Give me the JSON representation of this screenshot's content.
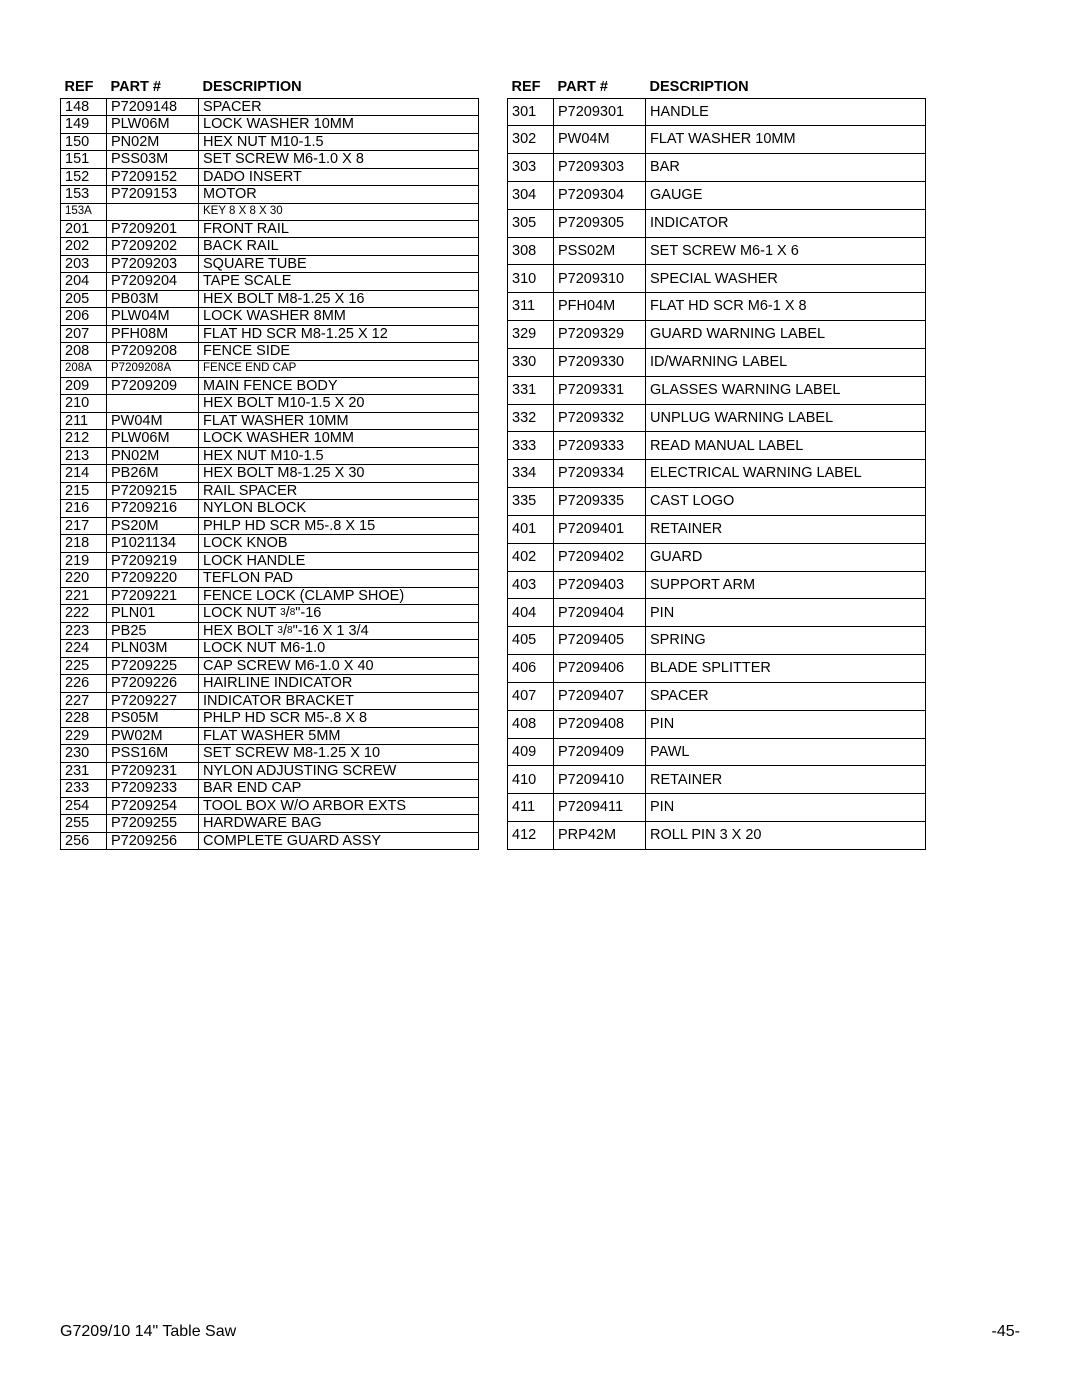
{
  "headers": {
    "ref": "REF",
    "part": "PART #",
    "desc": "DESCRIPTION"
  },
  "footer": {
    "left": "G7209/10 14\" Table Saw",
    "right": "-45-"
  },
  "col_widths": {
    "ref": 46,
    "part": 92,
    "desc": 280
  },
  "left_rows": [
    {
      "ref": "148",
      "part": "P7209148",
      "desc": "SPACER"
    },
    {
      "ref": "149",
      "part": "PLW06M",
      "desc": "LOCK WASHER 10MM"
    },
    {
      "ref": "150",
      "part": "PN02M",
      "desc": "HEX NUT M10-1.5"
    },
    {
      "ref": "151",
      "part": "PSS03M",
      "desc": "SET SCREW M6-1.0 X 8"
    },
    {
      "ref": "152",
      "part": "P7209152",
      "desc": "DADO INSERT"
    },
    {
      "ref": "153",
      "part": "P7209153",
      "desc": "MOTOR"
    },
    {
      "ref": "153A",
      "part": "",
      "desc": "KEY 8 X 8 X 30",
      "small": true
    },
    {
      "ref": "201",
      "part": "P7209201",
      "desc": "FRONT RAIL"
    },
    {
      "ref": "202",
      "part": "P7209202",
      "desc": "BACK RAIL"
    },
    {
      "ref": "203",
      "part": "P7209203",
      "desc": "SQUARE TUBE"
    },
    {
      "ref": "204",
      "part": "P7209204",
      "desc": "TAPE SCALE"
    },
    {
      "ref": "205",
      "part": "PB03M",
      "desc": "HEX BOLT M8-1.25 X 16"
    },
    {
      "ref": "206",
      "part": "PLW04M",
      "desc": "LOCK WASHER 8MM"
    },
    {
      "ref": "207",
      "part": "PFH08M",
      "desc": "FLAT HD SCR M8-1.25 X 12"
    },
    {
      "ref": "208",
      "part": "P7209208",
      "desc": "FENCE SIDE"
    },
    {
      "ref": "208A",
      "part": "P7209208A",
      "desc": "FENCE END CAP",
      "small": true
    },
    {
      "ref": "209",
      "part": "P7209209",
      "desc": "MAIN FENCE BODY"
    },
    {
      "ref": "210",
      "part": "",
      "desc": "HEX BOLT M10-1.5 X 20"
    },
    {
      "ref": "211",
      "part": "PW04M",
      "desc": "FLAT WASHER 10MM"
    },
    {
      "ref": "212",
      "part": "PLW06M",
      "desc": "LOCK WASHER 10MM"
    },
    {
      "ref": "213",
      "part": "PN02M",
      "desc": "HEX NUT M10-1.5"
    },
    {
      "ref": "214",
      "part": "PB26M",
      "desc": "HEX BOLT M8-1.25 X 30"
    },
    {
      "ref": "215",
      "part": "P7209215",
      "desc": "RAIL SPACER"
    },
    {
      "ref": "216",
      "part": "P7209216",
      "desc": "NYLON BLOCK"
    },
    {
      "ref": "217",
      "part": "PS20M",
      "desc": "PHLP HD SCR M5-.8 X 15"
    },
    {
      "ref": "218",
      "part": "P1021134",
      "desc": "LOCK KNOB"
    },
    {
      "ref": "219",
      "part": "P7209219",
      "desc": "LOCK HANDLE"
    },
    {
      "ref": "220",
      "part": "P7209220",
      "desc": "TEFLON PAD"
    },
    {
      "ref": "221",
      "part": "P7209221",
      "desc": "FENCE LOCK (CLAMP SHOE)"
    },
    {
      "ref": "222",
      "part": "PLN01",
      "desc": "LOCK NUT 3/8\"-16",
      "frac": true
    },
    {
      "ref": "223",
      "part": "PB25",
      "desc": "HEX BOLT 3/8\"-16 X 1 3/4",
      "frac": true
    },
    {
      "ref": "224",
      "part": "PLN03M",
      "desc": "LOCK NUT M6-1.0"
    },
    {
      "ref": "225",
      "part": "P7209225",
      "desc": "CAP SCREW M6-1.0 X 40"
    },
    {
      "ref": "226",
      "part": "P7209226",
      "desc": "HAIRLINE INDICATOR"
    },
    {
      "ref": "227",
      "part": "P7209227",
      "desc": "INDICATOR BRACKET"
    },
    {
      "ref": "228",
      "part": "PS05M",
      "desc": "PHLP HD SCR M5-.8 X 8"
    },
    {
      "ref": "229",
      "part": "PW02M",
      "desc": "FLAT WASHER 5MM"
    },
    {
      "ref": "230",
      "part": "PSS16M",
      "desc": "SET SCREW M8-1.25 X 10"
    },
    {
      "ref": "231",
      "part": "P7209231",
      "desc": "NYLON ADJUSTING SCREW"
    },
    {
      "ref": "233",
      "part": "P7209233",
      "desc": "BAR END CAP"
    },
    {
      "ref": "254",
      "part": "P7209254",
      "desc": "TOOL BOX W/O ARBOR EXTS"
    },
    {
      "ref": "255",
      "part": "P7209255",
      "desc": "HARDWARE BAG"
    },
    {
      "ref": "256",
      "part": "P7209256",
      "desc": "COMPLETE GUARD ASSY"
    }
  ],
  "right_rows": [
    {
      "ref": "301",
      "part": "P7209301",
      "desc": "HANDLE"
    },
    {
      "ref": "302",
      "part": "PW04M",
      "desc": "FLAT WASHER 10MM"
    },
    {
      "ref": "303",
      "part": "P7209303",
      "desc": "BAR"
    },
    {
      "ref": "304",
      "part": "P7209304",
      "desc": "GAUGE"
    },
    {
      "ref": "305",
      "part": "P7209305",
      "desc": "INDICATOR"
    },
    {
      "ref": "308",
      "part": "PSS02M",
      "desc": "SET SCREW M6-1 X 6"
    },
    {
      "ref": "310",
      "part": "P7209310",
      "desc": "SPECIAL WASHER"
    },
    {
      "ref": "311",
      "part": "PFH04M",
      "desc": "FLAT HD SCR M6-1 X 8"
    },
    {
      "ref": "329",
      "part": "P7209329",
      "desc": "GUARD WARNING LABEL"
    },
    {
      "ref": "330",
      "part": "P7209330",
      "desc": "ID/WARNING LABEL"
    },
    {
      "ref": "331",
      "part": "P7209331",
      "desc": "GLASSES WARNING LABEL"
    },
    {
      "ref": "332",
      "part": "P7209332",
      "desc": "UNPLUG WARNING LABEL"
    },
    {
      "ref": "333",
      "part": "P7209333",
      "desc": "READ MANUAL LABEL"
    },
    {
      "ref": "334",
      "part": "P7209334",
      "desc": "ELECTRICAL WARNING LABEL"
    },
    {
      "ref": "335",
      "part": "P7209335",
      "desc": "CAST LOGO"
    },
    {
      "ref": "401",
      "part": "P7209401",
      "desc": "RETAINER"
    },
    {
      "ref": "402",
      "part": "P7209402",
      "desc": "GUARD"
    },
    {
      "ref": "403",
      "part": "P7209403",
      "desc": "SUPPORT ARM"
    },
    {
      "ref": "404",
      "part": "P7209404",
      "desc": "PIN"
    },
    {
      "ref": "405",
      "part": "P7209405",
      "desc": "SPRING"
    },
    {
      "ref": "406",
      "part": "P7209406",
      "desc": "BLADE SPLITTER"
    },
    {
      "ref": "407",
      "part": "P7209407",
      "desc": "SPACER"
    },
    {
      "ref": "408",
      "part": "P7209408",
      "desc": "PIN"
    },
    {
      "ref": "409",
      "part": "P7209409",
      "desc": "PAWL"
    },
    {
      "ref": "410",
      "part": "P7209410",
      "desc": "RETAINER"
    },
    {
      "ref": "411",
      "part": "P7209411",
      "desc": "PIN"
    },
    {
      "ref": "412",
      "part": "PRP42M",
      "desc": "ROLL PIN 3 X 20"
    }
  ]
}
